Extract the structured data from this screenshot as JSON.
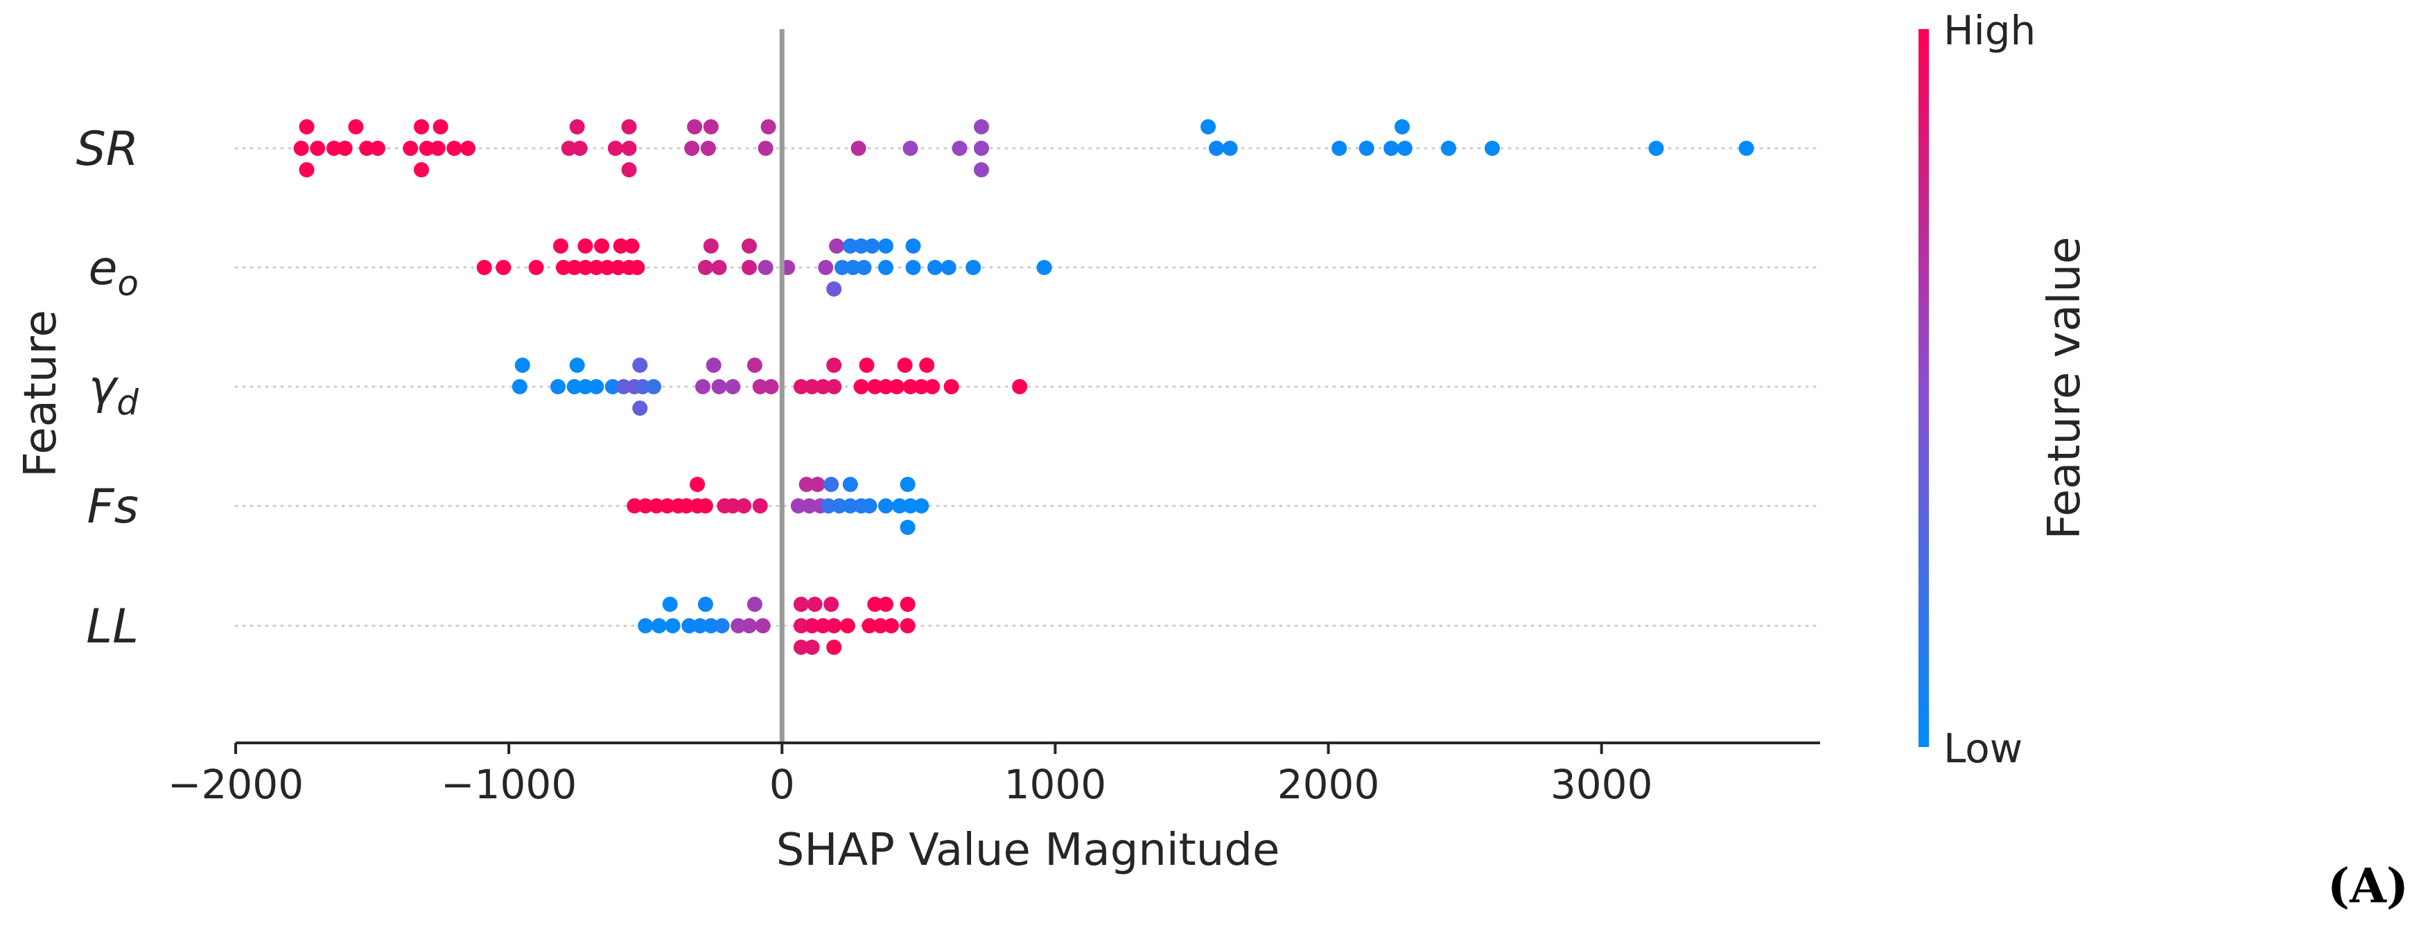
{
  "chart_data": {
    "type": "scatter",
    "subtype": "shap-beeswarm",
    "xlabel": "SHAP Value Magnitude",
    "ylabel": "Feature",
    "xlim": [
      -2000,
      3800
    ],
    "xticks": [
      -2000,
      -1000,
      0,
      1000,
      2000,
      3000
    ],
    "xtick_labels": [
      "−2000",
      "−1000",
      "0",
      "1000",
      "2000",
      "3000"
    ],
    "colorbar": {
      "label": "Feature value",
      "high_label": "High",
      "low_label": "Low",
      "low_color": "#008bfb",
      "mid_color": "#8a4ed0",
      "high_color": "#ff0052"
    },
    "panel_label": "(A)",
    "zero_line_color": "#999999",
    "features": [
      {
        "name": "SR",
        "display": "SR",
        "sub": "",
        "points": [
          {
            "x": -1740,
            "y": 1,
            "v": 1
          },
          {
            "x": -1560,
            "y": 1,
            "v": 1
          },
          {
            "x": -1320,
            "y": 1,
            "v": 1
          },
          {
            "x": -1250,
            "y": 1,
            "v": 1
          },
          {
            "x": -750,
            "y": 1,
            "v": 0.88
          },
          {
            "x": -560,
            "y": 1,
            "v": 0.88
          },
          {
            "x": -320,
            "y": 1,
            "v": 0.72
          },
          {
            "x": -260,
            "y": 1,
            "v": 0.72
          },
          {
            "x": -50,
            "y": 1,
            "v": 0.7
          },
          {
            "x": 730,
            "y": 1,
            "v": 0.55
          },
          {
            "x": 1560,
            "y": 1,
            "v": 0.02
          },
          {
            "x": 2270,
            "y": 1,
            "v": 0.02
          },
          {
            "x": -1760,
            "y": 0,
            "v": 1
          },
          {
            "x": -1700,
            "y": 0,
            "v": 1
          },
          {
            "x": -1640,
            "y": 0,
            "v": 1
          },
          {
            "x": -1600,
            "y": 0,
            "v": 1
          },
          {
            "x": -1520,
            "y": 0,
            "v": 1
          },
          {
            "x": -1480,
            "y": 0,
            "v": 1
          },
          {
            "x": -1360,
            "y": 0,
            "v": 1
          },
          {
            "x": -1300,
            "y": 0,
            "v": 1
          },
          {
            "x": -1260,
            "y": 0,
            "v": 1
          },
          {
            "x": -1200,
            "y": 0,
            "v": 1
          },
          {
            "x": -1150,
            "y": 0,
            "v": 1
          },
          {
            "x": -780,
            "y": 0,
            "v": 0.88
          },
          {
            "x": -740,
            "y": 0,
            "v": 0.88
          },
          {
            "x": -610,
            "y": 0,
            "v": 0.88
          },
          {
            "x": -560,
            "y": 0,
            "v": 0.88
          },
          {
            "x": -330,
            "y": 0,
            "v": 0.72
          },
          {
            "x": -270,
            "y": 0,
            "v": 0.72
          },
          {
            "x": -60,
            "y": 0,
            "v": 0.7
          },
          {
            "x": 280,
            "y": 0,
            "v": 0.7
          },
          {
            "x": 470,
            "y": 0,
            "v": 0.55
          },
          {
            "x": 650,
            "y": 0,
            "v": 0.55
          },
          {
            "x": 730,
            "y": 0,
            "v": 0.55
          },
          {
            "x": 1590,
            "y": 0,
            "v": 0.05
          },
          {
            "x": 1640,
            "y": 0,
            "v": 0.05
          },
          {
            "x": 2040,
            "y": 0,
            "v": 0.03
          },
          {
            "x": 2140,
            "y": 0,
            "v": 0.03
          },
          {
            "x": 2230,
            "y": 0,
            "v": 0.03
          },
          {
            "x": 2280,
            "y": 0,
            "v": 0.03
          },
          {
            "x": 2440,
            "y": 0,
            "v": 0.02
          },
          {
            "x": 2600,
            "y": 0,
            "v": 0.02
          },
          {
            "x": 3200,
            "y": 0,
            "v": 0.01
          },
          {
            "x": 3530,
            "y": 0,
            "v": 0.01
          },
          {
            "x": -1740,
            "y": -1,
            "v": 1
          },
          {
            "x": -1320,
            "y": -1,
            "v": 1
          },
          {
            "x": -560,
            "y": -1,
            "v": 0.88
          },
          {
            "x": 730,
            "y": -1,
            "v": 0.55
          }
        ]
      },
      {
        "name": "eo",
        "display": "e",
        "sub": "o",
        "points": [
          {
            "x": -810,
            "y": 1,
            "v": 1
          },
          {
            "x": -720,
            "y": 1,
            "v": 1
          },
          {
            "x": -660,
            "y": 1,
            "v": 1
          },
          {
            "x": -590,
            "y": 1,
            "v": 1
          },
          {
            "x": -550,
            "y": 1,
            "v": 1
          },
          {
            "x": -260,
            "y": 1,
            "v": 0.8
          },
          {
            "x": -120,
            "y": 1,
            "v": 0.8
          },
          {
            "x": 200,
            "y": 1,
            "v": 0.62
          },
          {
            "x": 250,
            "y": 1,
            "v": 0.1
          },
          {
            "x": 290,
            "y": 1,
            "v": 0.1
          },
          {
            "x": 330,
            "y": 1,
            "v": 0.1
          },
          {
            "x": 380,
            "y": 1,
            "v": 0.05
          },
          {
            "x": 480,
            "y": 1,
            "v": 0.05
          },
          {
            "x": -1090,
            "y": 0,
            "v": 1
          },
          {
            "x": -1020,
            "y": 0,
            "v": 1
          },
          {
            "x": -900,
            "y": 0,
            "v": 1
          },
          {
            "x": -800,
            "y": 0,
            "v": 1
          },
          {
            "x": -760,
            "y": 0,
            "v": 1
          },
          {
            "x": -720,
            "y": 0,
            "v": 1
          },
          {
            "x": -680,
            "y": 0,
            "v": 1
          },
          {
            "x": -640,
            "y": 0,
            "v": 1
          },
          {
            "x": -600,
            "y": 0,
            "v": 1
          },
          {
            "x": -560,
            "y": 0,
            "v": 1
          },
          {
            "x": -530,
            "y": 0,
            "v": 1
          },
          {
            "x": -280,
            "y": 0,
            "v": 0.8
          },
          {
            "x": -230,
            "y": 0,
            "v": 0.8
          },
          {
            "x": -120,
            "y": 0,
            "v": 0.8
          },
          {
            "x": -60,
            "y": 0,
            "v": 0.62
          },
          {
            "x": 20,
            "y": 0,
            "v": 0.62
          },
          {
            "x": 160,
            "y": 0,
            "v": 0.6
          },
          {
            "x": 220,
            "y": 0,
            "v": 0.1
          },
          {
            "x": 260,
            "y": 0,
            "v": 0.1
          },
          {
            "x": 300,
            "y": 0,
            "v": 0.1
          },
          {
            "x": 380,
            "y": 0,
            "v": 0.05
          },
          {
            "x": 480,
            "y": 0,
            "v": 0.05
          },
          {
            "x": 560,
            "y": 0,
            "v": 0.05
          },
          {
            "x": 610,
            "y": 0,
            "v": 0.05
          },
          {
            "x": 700,
            "y": 0,
            "v": 0.04
          },
          {
            "x": 960,
            "y": 0,
            "v": 0.02
          },
          {
            "x": 190,
            "y": -1,
            "v": 0.4
          }
        ]
      },
      {
        "name": "gamma_d",
        "display": "γ",
        "sub": "d",
        "points": [
          {
            "x": -950,
            "y": 1,
            "v": 0.02
          },
          {
            "x": -750,
            "y": 1,
            "v": 0.02
          },
          {
            "x": -520,
            "y": 1,
            "v": 0.35
          },
          {
            "x": -250,
            "y": 1,
            "v": 0.6
          },
          {
            "x": -100,
            "y": 1,
            "v": 0.72
          },
          {
            "x": 190,
            "y": 1,
            "v": 0.88
          },
          {
            "x": 310,
            "y": 1,
            "v": 1
          },
          {
            "x": 450,
            "y": 1,
            "v": 1
          },
          {
            "x": 530,
            "y": 1,
            "v": 1
          },
          {
            "x": -960,
            "y": 0,
            "v": 0.02
          },
          {
            "x": -820,
            "y": 0,
            "v": 0.02
          },
          {
            "x": -760,
            "y": 0,
            "v": 0.02
          },
          {
            "x": -720,
            "y": 0,
            "v": 0.02
          },
          {
            "x": -680,
            "y": 0,
            "v": 0.02
          },
          {
            "x": -620,
            "y": 0,
            "v": 0.05
          },
          {
            "x": -580,
            "y": 0,
            "v": 0.35
          },
          {
            "x": -540,
            "y": 0,
            "v": 0.4
          },
          {
            "x": -510,
            "y": 0,
            "v": 0.3
          },
          {
            "x": -470,
            "y": 0,
            "v": 0.2
          },
          {
            "x": -290,
            "y": 0,
            "v": 0.6
          },
          {
            "x": -230,
            "y": 0,
            "v": 0.6
          },
          {
            "x": -180,
            "y": 0,
            "v": 0.6
          },
          {
            "x": -80,
            "y": 0,
            "v": 0.72
          },
          {
            "x": -40,
            "y": 0,
            "v": 0.72
          },
          {
            "x": 70,
            "y": 0,
            "v": 0.88
          },
          {
            "x": 110,
            "y": 0,
            "v": 0.88
          },
          {
            "x": 150,
            "y": 0,
            "v": 0.88
          },
          {
            "x": 190,
            "y": 0,
            "v": 0.88
          },
          {
            "x": 290,
            "y": 0,
            "v": 1
          },
          {
            "x": 340,
            "y": 0,
            "v": 1
          },
          {
            "x": 380,
            "y": 0,
            "v": 1
          },
          {
            "x": 420,
            "y": 0,
            "v": 1
          },
          {
            "x": 470,
            "y": 0,
            "v": 1
          },
          {
            "x": 510,
            "y": 0,
            "v": 1
          },
          {
            "x": 550,
            "y": 0,
            "v": 1
          },
          {
            "x": 620,
            "y": 0,
            "v": 1
          },
          {
            "x": 870,
            "y": 0,
            "v": 1
          },
          {
            "x": -520,
            "y": -1,
            "v": 0.35
          }
        ]
      },
      {
        "name": "Fs",
        "display": "Fs",
        "sub": "",
        "points": [
          {
            "x": -310,
            "y": 1,
            "v": 1
          },
          {
            "x": 90,
            "y": 1,
            "v": 0.72
          },
          {
            "x": 130,
            "y": 1,
            "v": 0.72
          },
          {
            "x": 180,
            "y": 1,
            "v": 0.2
          },
          {
            "x": 250,
            "y": 1,
            "v": 0.1
          },
          {
            "x": 460,
            "y": 1,
            "v": 0.02
          },
          {
            "x": -540,
            "y": 0,
            "v": 1
          },
          {
            "x": -500,
            "y": 0,
            "v": 1
          },
          {
            "x": -460,
            "y": 0,
            "v": 1
          },
          {
            "x": -420,
            "y": 0,
            "v": 1
          },
          {
            "x": -380,
            "y": 0,
            "v": 1
          },
          {
            "x": -350,
            "y": 0,
            "v": 1
          },
          {
            "x": -310,
            "y": 0,
            "v": 1
          },
          {
            "x": -280,
            "y": 0,
            "v": 1
          },
          {
            "x": -210,
            "y": 0,
            "v": 0.88
          },
          {
            "x": -180,
            "y": 0,
            "v": 0.88
          },
          {
            "x": -140,
            "y": 0,
            "v": 0.88
          },
          {
            "x": -80,
            "y": 0,
            "v": 0.88
          },
          {
            "x": 60,
            "y": 0,
            "v": 0.6
          },
          {
            "x": 100,
            "y": 0,
            "v": 0.6
          },
          {
            "x": 140,
            "y": 0,
            "v": 0.6
          },
          {
            "x": 170,
            "y": 0,
            "v": 0.2
          },
          {
            "x": 210,
            "y": 0,
            "v": 0.15
          },
          {
            "x": 250,
            "y": 0,
            "v": 0.12
          },
          {
            "x": 290,
            "y": 0,
            "v": 0.12
          },
          {
            "x": 320,
            "y": 0,
            "v": 0.1
          },
          {
            "x": 380,
            "y": 0,
            "v": 0.05
          },
          {
            "x": 430,
            "y": 0,
            "v": 0.02
          },
          {
            "x": 470,
            "y": 0,
            "v": 0.02
          },
          {
            "x": 510,
            "y": 0,
            "v": 0.02
          },
          {
            "x": 460,
            "y": -1,
            "v": 0.02
          }
        ]
      },
      {
        "name": "LL",
        "display": "LL",
        "sub": "",
        "points": [
          {
            "x": -410,
            "y": 1,
            "v": 0.02
          },
          {
            "x": -280,
            "y": 1,
            "v": 0.05
          },
          {
            "x": -100,
            "y": 1,
            "v": 0.6
          },
          {
            "x": 70,
            "y": 1,
            "v": 0.88
          },
          {
            "x": 120,
            "y": 1,
            "v": 0.88
          },
          {
            "x": 180,
            "y": 1,
            "v": 0.88
          },
          {
            "x": 340,
            "y": 1,
            "v": 1
          },
          {
            "x": 380,
            "y": 1,
            "v": 1
          },
          {
            "x": 460,
            "y": 1,
            "v": 1
          },
          {
            "x": -500,
            "y": 0,
            "v": 0.02
          },
          {
            "x": -450,
            "y": 0,
            "v": 0.02
          },
          {
            "x": -400,
            "y": 0,
            "v": 0.02
          },
          {
            "x": -340,
            "y": 0,
            "v": 0.05
          },
          {
            "x": -300,
            "y": 0,
            "v": 0.05
          },
          {
            "x": -260,
            "y": 0,
            "v": 0.05
          },
          {
            "x": -220,
            "y": 0,
            "v": 0.1
          },
          {
            "x": -160,
            "y": 0,
            "v": 0.6
          },
          {
            "x": -120,
            "y": 0,
            "v": 0.62
          },
          {
            "x": -70,
            "y": 0,
            "v": 0.65
          },
          {
            "x": 70,
            "y": 0,
            "v": 0.9
          },
          {
            "x": 110,
            "y": 0,
            "v": 0.95
          },
          {
            "x": 150,
            "y": 0,
            "v": 0.95
          },
          {
            "x": 190,
            "y": 0,
            "v": 0.95
          },
          {
            "x": 240,
            "y": 0,
            "v": 1
          },
          {
            "x": 320,
            "y": 0,
            "v": 1
          },
          {
            "x": 360,
            "y": 0,
            "v": 1
          },
          {
            "x": 400,
            "y": 0,
            "v": 1
          },
          {
            "x": 460,
            "y": 0,
            "v": 1
          },
          {
            "x": 70,
            "y": -1,
            "v": 0.88
          },
          {
            "x": 110,
            "y": -1,
            "v": 0.88
          },
          {
            "x": 190,
            "y": -1,
            "v": 1
          }
        ]
      }
    ]
  }
}
